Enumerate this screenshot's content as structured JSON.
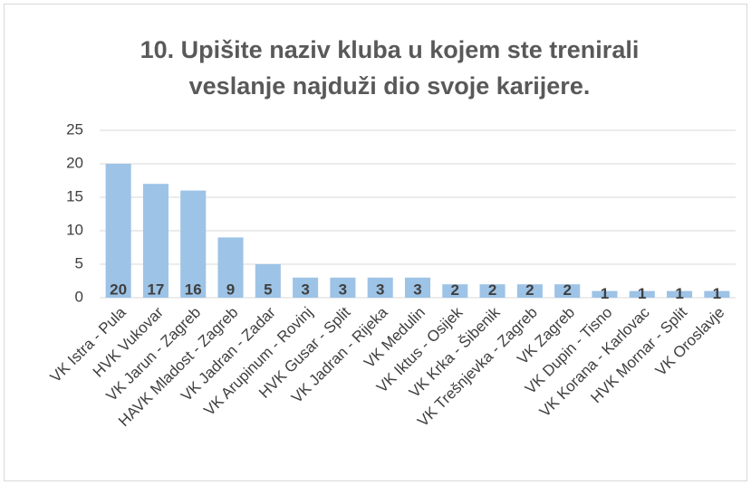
{
  "chart_data": {
    "type": "bar",
    "title": [
      "10. Upišite naziv kluba u kojem ste trenirali",
      "veslanje najduži dio svoje karijere."
    ],
    "categories": [
      "VK Istra - Pula",
      "HVK Vukovar",
      "VK Jarun - Zagreb",
      "HAVK Mladost - Zagreb",
      "VK Jadran - Zadar",
      "VK Arupinum - Rovinj",
      "HVK Gusar - Split",
      "VK Jadran - Rijeka",
      "VK Medulin",
      "VK Iktus - Osijek",
      "VK Krka - Šibenik",
      "VK Trešnjevka - Zagreb",
      "VK Zagreb",
      "VK Dupin - Tisno",
      "VK Korana - Karlovac",
      "HVK Mornar - Split",
      "VK Oroslavje"
    ],
    "values": [
      20,
      17,
      16,
      9,
      5,
      3,
      3,
      3,
      3,
      2,
      2,
      2,
      2,
      1,
      1,
      1,
      1
    ],
    "color": "#9dc3e6",
    "ylim": [
      0,
      25
    ],
    "yticks": [
      0,
      5,
      10,
      15,
      20,
      25
    ],
    "grid": true
  }
}
